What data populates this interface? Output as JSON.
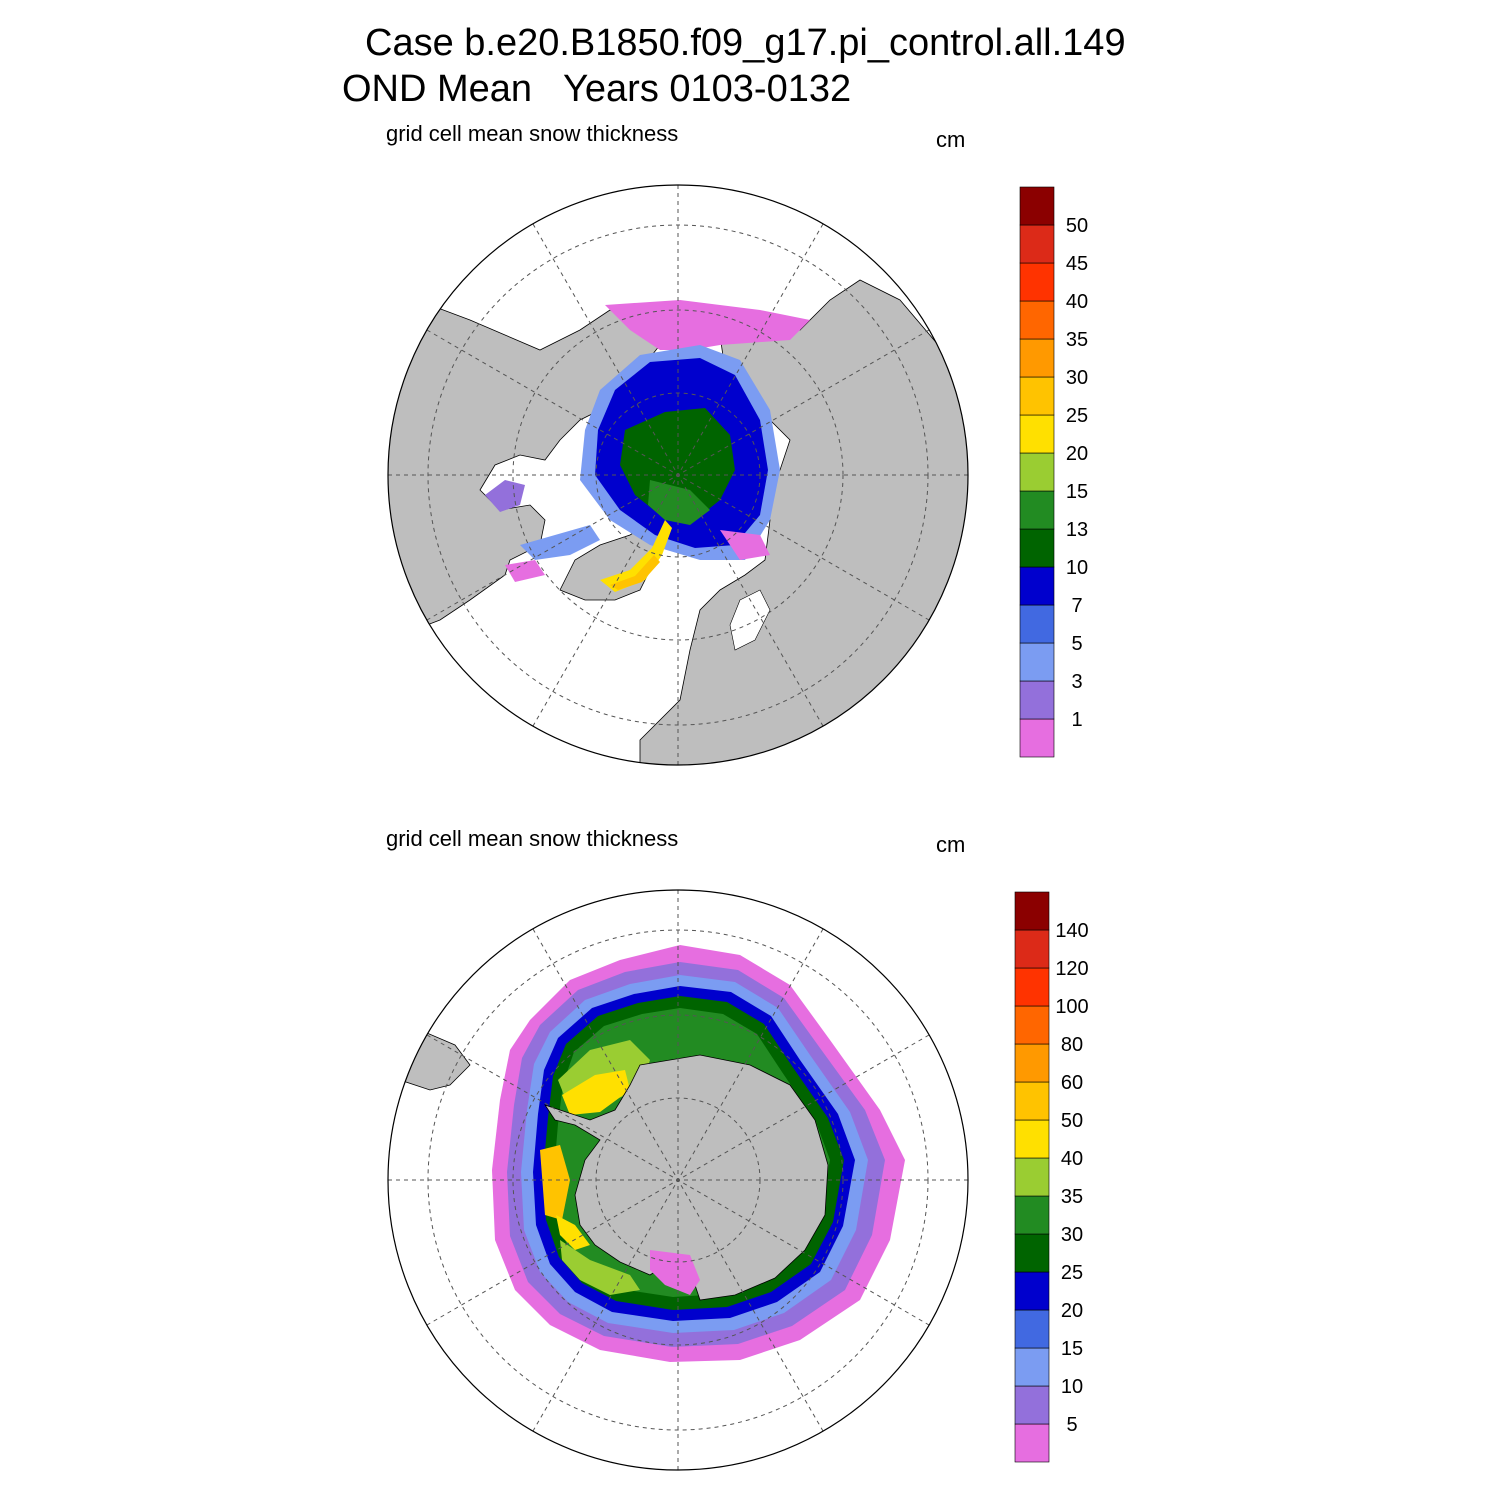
{
  "figure": {
    "title_line1": "Case b.e20.B1850.f09_g17.pi_control.all.149",
    "title_line2": "OND Mean   Years 0103-0132"
  },
  "panels": [
    {
      "id": "north",
      "hemisphere": "Northern",
      "title": "grid cell mean snow thickness",
      "units": "cm",
      "colorbar": {
        "levels": [
          "1",
          "3",
          "5",
          "7",
          "10",
          "13",
          "15",
          "20",
          "25",
          "30",
          "35",
          "40",
          "45",
          "50"
        ],
        "colors": [
          "#e66ee0",
          "#9370db",
          "#7b9cf2",
          "#4169e1",
          "#0000cd",
          "#006400",
          "#228b22",
          "#9acd32",
          "#ffe000",
          "#ffc300",
          "#ff9900",
          "#ff6600",
          "#ff3300",
          "#dc2a18",
          "#8b0000"
        ]
      }
    },
    {
      "id": "south",
      "hemisphere": "Southern",
      "title": "grid cell mean snow thickness",
      "units": "cm",
      "colorbar": {
        "levels": [
          "5",
          "10",
          "15",
          "20",
          "25",
          "30",
          "35",
          "40",
          "50",
          "60",
          "80",
          "100",
          "120",
          "140"
        ],
        "colors": [
          "#e66ee0",
          "#9370db",
          "#7b9cf2",
          "#4169e1",
          "#0000cd",
          "#006400",
          "#228b22",
          "#9acd32",
          "#ffe000",
          "#ffc300",
          "#ff9900",
          "#ff6600",
          "#ff3300",
          "#dc2a18",
          "#8b0000"
        ]
      }
    }
  ],
  "colors": {
    "land": "#bebebe",
    "ocean": "#ffffff",
    "grid": "#555555"
  }
}
